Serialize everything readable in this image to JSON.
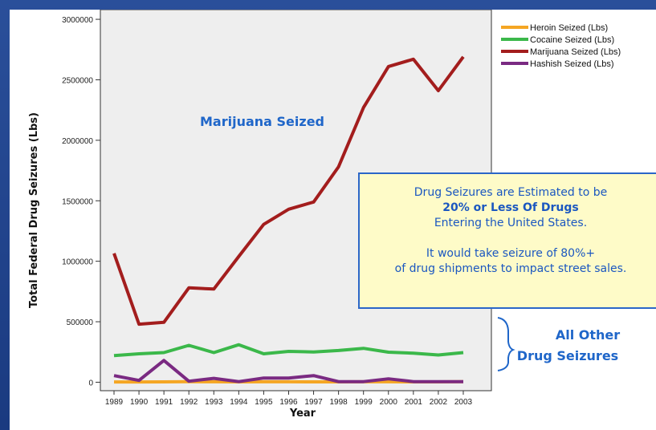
{
  "chart_data": {
    "type": "line",
    "title": "",
    "xlabel": "Year",
    "ylabel": "Total Federal Drug Seizures (Lbs)",
    "ylim": [
      -70000,
      3080000
    ],
    "yticks": [
      0,
      500000,
      1000000,
      1500000,
      2000000,
      2500000,
      3000000
    ],
    "ytick_labels": [
      "0",
      "500000",
      "1000000",
      "1500000",
      "2000000",
      "2500000",
      "3000000"
    ],
    "x": [
      "1989",
      "1990",
      "1991",
      "1992",
      "1993",
      "1994",
      "1995",
      "1996",
      "1997",
      "1998",
      "1999",
      "2000",
      "2001",
      "2002",
      "2003"
    ],
    "legend_position": "top-right",
    "series": [
      {
        "name": "Heroin Seized (Lbs)",
        "color": "#f5a623",
        "values": [
          2000,
          2500,
          3000,
          4000,
          3500,
          3000,
          3500,
          3500,
          3000,
          3000,
          3500,
          3500,
          3000,
          3000,
          4000
        ]
      },
      {
        "name": "Cocaine Seized (Lbs)",
        "color": "#3bb84a",
        "values": [
          220000,
          235000,
          245000,
          305000,
          245000,
          310000,
          235000,
          255000,
          250000,
          262000,
          280000,
          248000,
          240000,
          225000,
          245000
        ]
      },
      {
        "name": "Marijuana Seized (Lbs)",
        "color": "#a31d1d",
        "values": [
          1065000,
          480000,
          495000,
          780000,
          770000,
          1040000,
          1305000,
          1430000,
          1490000,
          1780000,
          2270000,
          2610000,
          2670000,
          2410000,
          2690000
        ]
      },
      {
        "name": "Hashish Seized (Lbs)",
        "color": "#7a2a82",
        "values": [
          55000,
          15000,
          180000,
          8000,
          32000,
          5000,
          35000,
          35000,
          55000,
          5000,
          5000,
          28000,
          5000,
          5000,
          5000
        ]
      }
    ],
    "annotations": {
      "marijuana_label": "Marijuana Seized",
      "callout_lines": [
        "Drug Seizures are Estimated to be",
        "20% or Less Of Drugs",
        "Entering the United States.",
        "",
        "It would take seizure of 80%+",
        "of drug shipments to impact street sales."
      ],
      "other_label_1": "All Other",
      "other_label_2": "Drug Seizures"
    },
    "colors": {
      "plot_background": "#eeeeee",
      "annotation_blue": "#1f66c9",
      "callout_background": "#fefbc8"
    }
  }
}
